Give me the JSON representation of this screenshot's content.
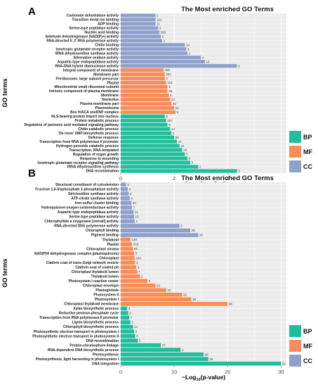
{
  "colors": {
    "BP": "#1fbf9a",
    "MF": "#fb8b57",
    "CC": "#8ea1cc"
  },
  "legend": [
    "BP",
    "MF",
    "CC"
  ],
  "chart_data": [
    {
      "type": "bar",
      "panel_label": "A",
      "title": "The Most enriched GO Terms",
      "ylabel": "GO terms",
      "xlabel_pre": "−Log",
      "xlabel_sub": "10",
      "xlabel_post": "(p-value)",
      "xlim": [
        0,
        6.2
      ],
      "xticks": [
        0,
        2,
        4
      ],
      "grid": true,
      "legend_position": "right-bottom",
      "categories": [
        "Carbonate dehydratase activity",
        "Transition metal ion binding",
        "ADP binding",
        "Serine-type peptidase activity",
        "Nucleic acid binding",
        "Aldehyde dehydrogenase [NAD(P)+] activity",
        "RNA-directed 5'-3' RNA polymerase activity",
        "Chitin binding",
        "Ionotropic glutamate receptor activity",
        "tRNA dihydrouridine synthase activity",
        "Alternative oxidase activity",
        "Aspartic-type endopeptidase activity",
        "RNA-DNA hybrid ribonuclease activity",
        "Integral component of membrane",
        "Membrane part",
        "Preribosome, large subunit precursor",
        "Plastid",
        "Mitochondrial small ribosomal subunit",
        "Intrinsic component of plasma membrane",
        "Membrane",
        "Nucleolus",
        "Plasma membrane part",
        "Plasmodesma",
        "Box H/ACA snoRNP complex",
        "NLS-bearing protein import into nucleus",
        "Protein metabolic process",
        "Regulation of jasmonic acid mediated signaling pathway",
        "Chitin catabolic process",
        "'De novo' UMP biosynthetic process",
        "Defense response",
        "Transcription from RNA polymerase II promoter",
        "Hydrogen peroxide catabolic process",
        "Transcription, RNA-templated",
        "Regulation of organ growth",
        "Response to wounding",
        "Ionotropic glutamate receptor signaling pathway",
        "tRNA dihydrouridine synthesis",
        "DNA recombination"
      ],
      "groups": [
        "CC",
        "CC",
        "CC",
        "CC",
        "CC",
        "CC",
        "CC",
        "CC",
        "CC",
        "CC",
        "CC",
        "CC",
        "CC",
        "MF",
        "MF",
        "MF",
        "MF",
        "MF",
        "MF",
        "MF",
        "MF",
        "MF",
        "MF",
        "MF",
        "BP",
        "BP",
        "BP",
        "BP",
        "BP",
        "BP",
        "BP",
        "BP",
        "BP",
        "BP",
        "BP",
        "BP",
        "BP",
        "BP"
      ],
      "values": [
        1.3,
        1.3,
        1.3,
        1.4,
        1.45,
        1.5,
        1.55,
        2.4,
        2.45,
        2.5,
        3.0,
        3.15,
        4.35,
        1.6,
        1.65,
        1.65,
        1.7,
        1.75,
        1.75,
        1.8,
        1.85,
        1.9,
        2.0,
        2.05,
        1.65,
        1.7,
        1.75,
        1.85,
        1.9,
        2.0,
        2.1,
        2.2,
        2.3,
        2.4,
        2.5,
        2.6,
        2.9,
        4.35
      ],
      "labels": [
        "2",
        "121",
        "11",
        "4",
        "265",
        "5",
        "2",
        "14",
        "3",
        "2",
        "4",
        "15",
        "3",
        "450",
        "461",
        "3",
        "118",
        "3",
        "39",
        "9",
        "44",
        "40",
        "22",
        "5",
        "9",
        "287",
        "9",
        "13",
        "3",
        "60",
        "47",
        "15",
        "16",
        "5",
        "9",
        "3",
        "2",
        "5"
      ]
    },
    {
      "type": "bar",
      "panel_label": "B",
      "title": "The Most enriched GO Terms",
      "ylabel": "GO terms",
      "xlabel_pre": "−Log",
      "xlabel_sub": "10",
      "xlabel_post": "(p-value)",
      "xlim": [
        0,
        31
      ],
      "xticks": [
        0,
        10,
        20,
        30
      ],
      "grid": true,
      "legend_position": "right-bottom",
      "categories": [
        "Structural constituent of cytoskeleton",
        "Fructose 1,6-bisphosphate 1-phosphatase activity",
        "Strictosidine synthase activity",
        "ATP citrate synthase activity",
        "Iron-sulfur cluster binding",
        "Hydroquinone:oxygen oxidoreductase activity",
        "Aspartic-type endopeptidase activity",
        "Serine-type peptidase activity",
        "Chlorophyllide a oxygenase [overall] activity",
        "RNA-directed DNA polymerase activity",
        "Chlorophyll binding",
        "Pigment binding",
        "Thylakoid",
        "Plastid",
        "Chloroplast stroma",
        "NAD(P)H dehydrogenase complex (plastoquinone)",
        "Chloroplast",
        "Clathrin coat of trans-Golgi network vesicle",
        "Clathrin coat of coated pit",
        "Chloroplast thylakoid lumen",
        "Thylakoid lumen",
        "Photosystem I reaction center",
        "Chloroplast envelope",
        "Plastoglobule",
        "Photosystem II",
        "Photosystem I",
        "Chloroplast thylakoid membrane",
        "Xylan biosynthetic process",
        "Reductive pentose-phosphate cycle",
        "Transcription from RNA polymerase II promoter",
        "Lignin biosynthetic process",
        "Chlorophyll biosynthetic process",
        "Photosynthetic electron transport in photosystem I",
        "Photosynthetic electron transport in photosystem II",
        "DNA recombination",
        "Protein-chromophore linkage",
        "RNA-dependent DNA biosynthetic process",
        "Photosynthesis",
        "Photosynthesis, light harvesting in photosystem I",
        "DNA integration"
      ],
      "groups": [
        "CC",
        "CC",
        "CC",
        "CC",
        "CC",
        "CC",
        "CC",
        "CC",
        "CC",
        "CC",
        "CC",
        "CC",
        "MF",
        "MF",
        "MF",
        "MF",
        "MF",
        "MF",
        "MF",
        "MF",
        "MF",
        "MF",
        "MF",
        "MF",
        "MF",
        "MF",
        "MF",
        "BP",
        "BP",
        "BP",
        "BP",
        "BP",
        "BP",
        "BP",
        "BP",
        "BP",
        "BP",
        "BP",
        "BP",
        "BP"
      ],
      "values": [
        1.0,
        1.3,
        1.5,
        1.7,
        2.0,
        2.1,
        2.4,
        2.5,
        2.6,
        11.0,
        13.0,
        14.5,
        1.8,
        2.1,
        2.3,
        2.5,
        2.6,
        2.7,
        2.9,
        3.1,
        3.6,
        5.0,
        6.5,
        8.5,
        11.5,
        13.2,
        20.0,
        1.2,
        1.4,
        1.6,
        1.8,
        2.3,
        2.5,
        2.7,
        3.2,
        7.5,
        11.2,
        15.5,
        16.4,
        30.0
      ],
      "labels": [
        "3",
        "4",
        "2",
        "4",
        "20",
        "7",
        "11",
        "16",
        "4",
        "6",
        "29",
        "26",
        "138",
        "413",
        "60",
        "3",
        "264",
        "3",
        "3",
        "7",
        "2",
        "9",
        "83",
        "34",
        "32",
        "38",
        "96",
        "3",
        "3",
        "7",
        "3",
        "14",
        "4",
        "3",
        "5",
        "27",
        "4",
        "99",
        "26",
        "31"
      ]
    }
  ]
}
